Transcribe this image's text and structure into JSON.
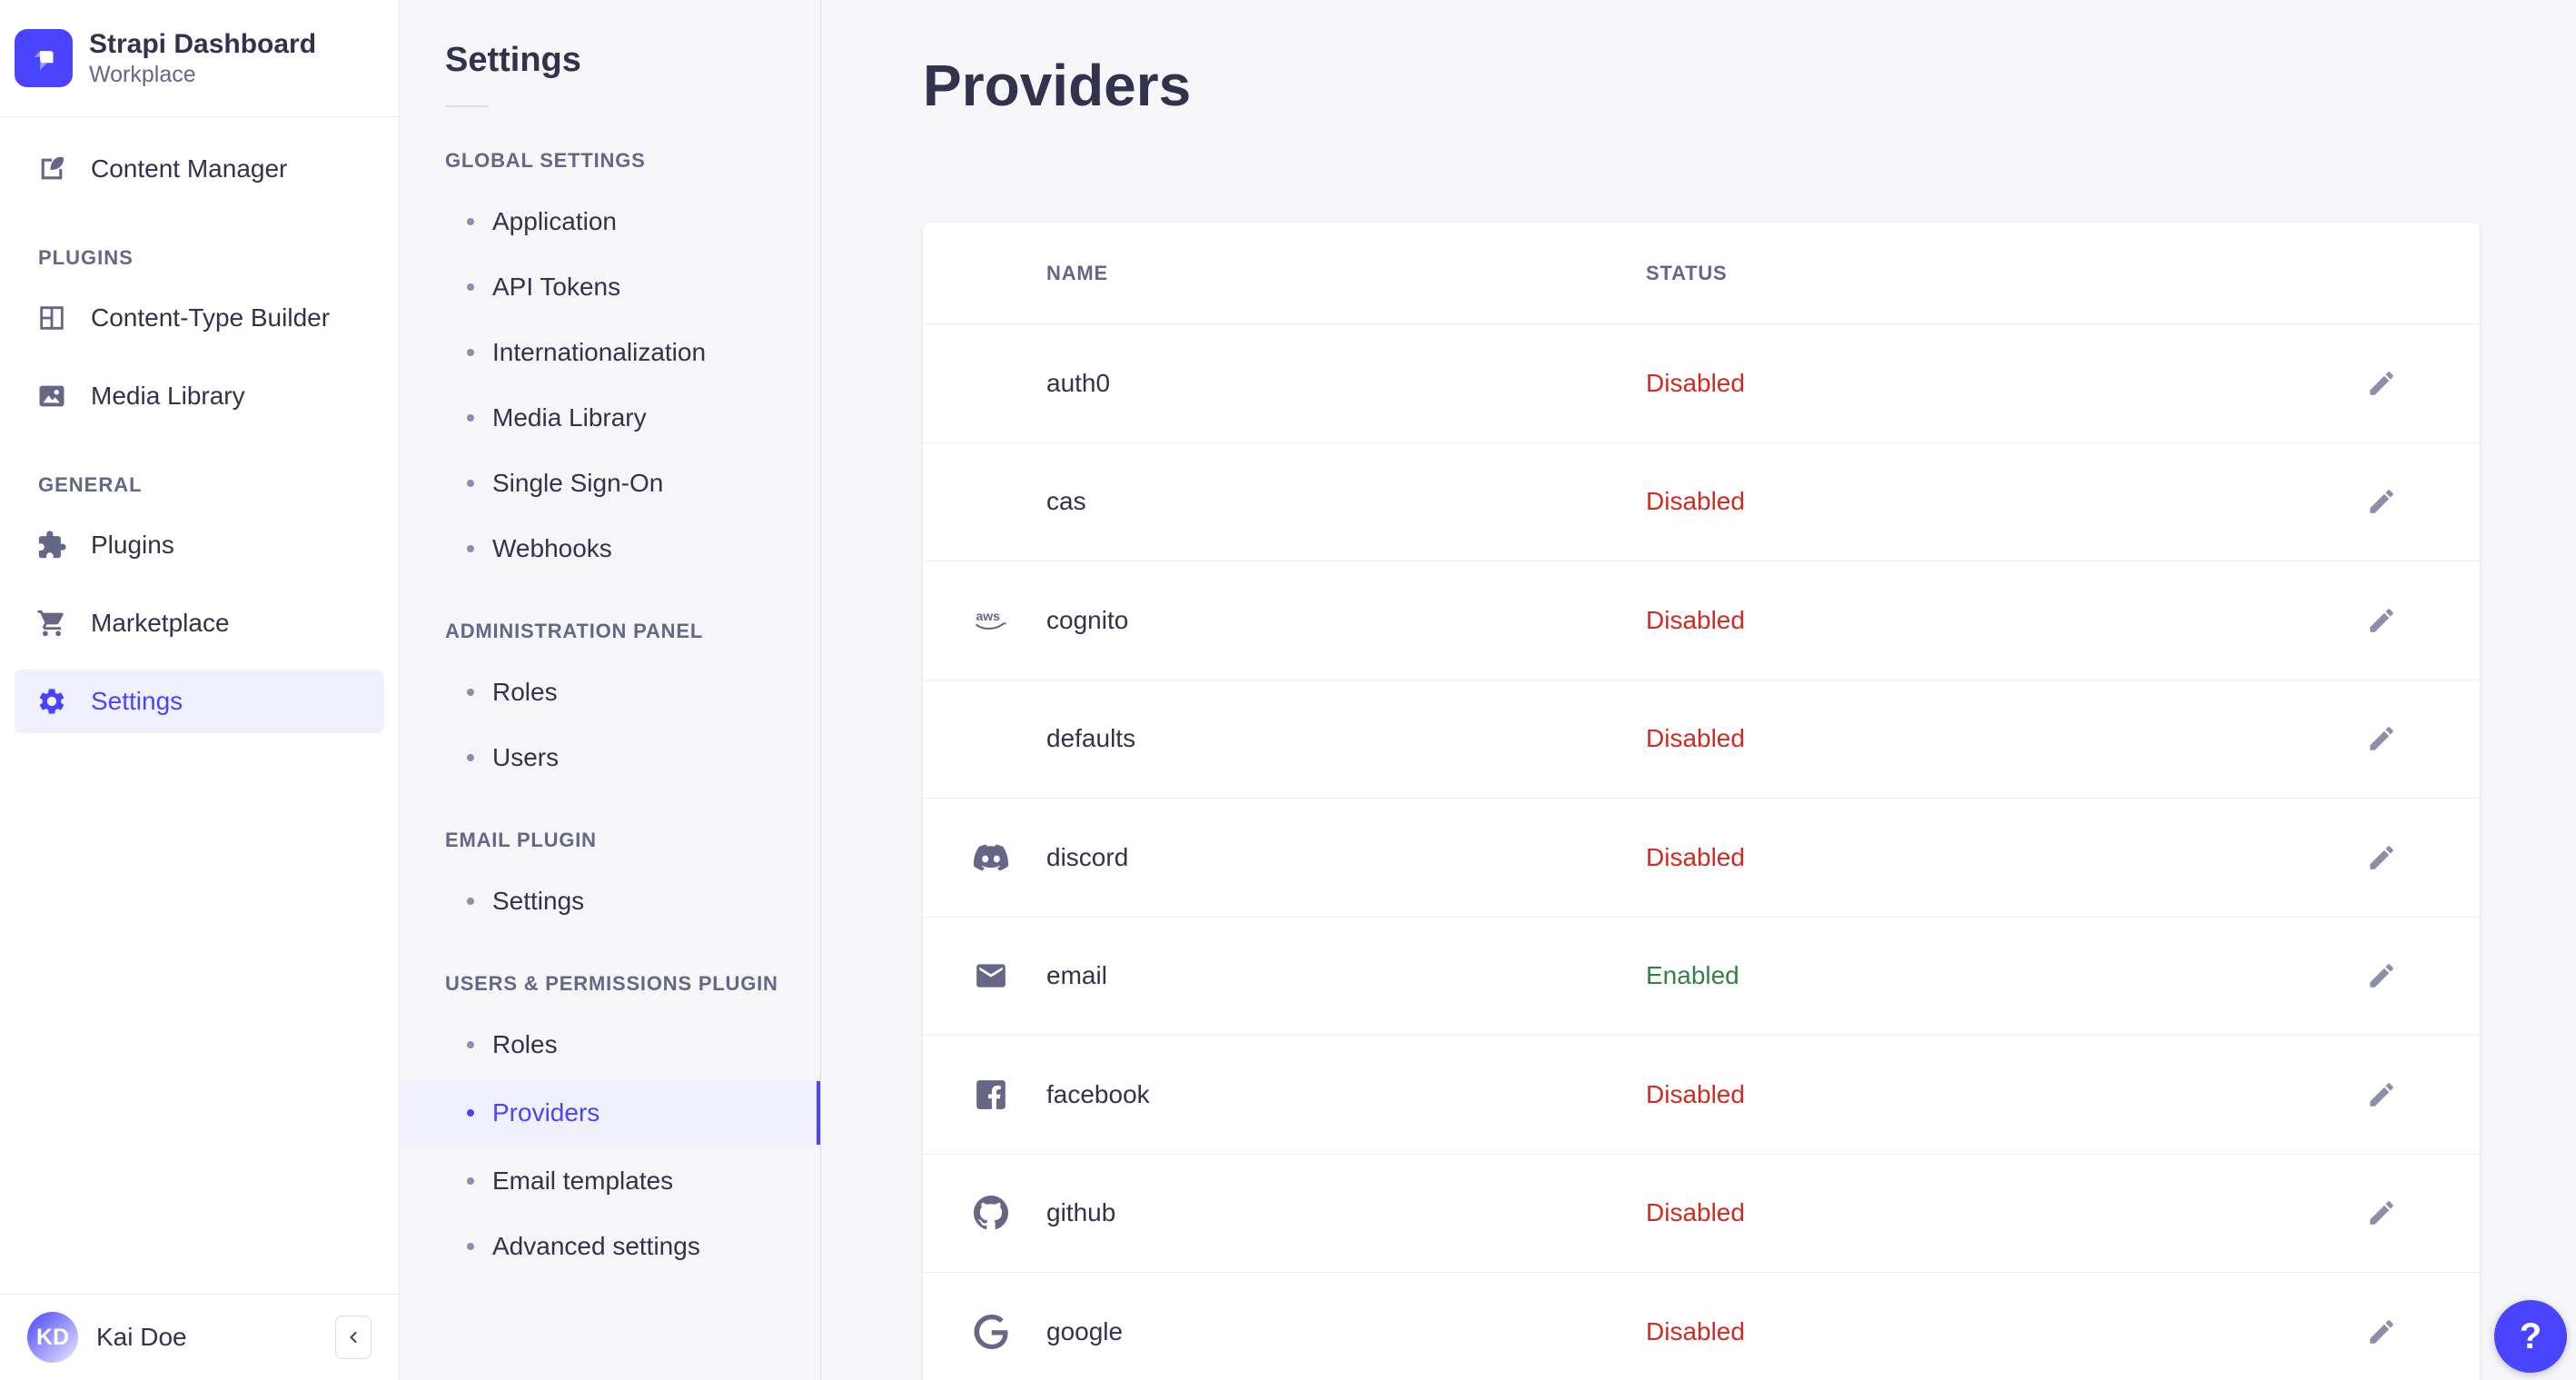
{
  "brand": {
    "name": "Strapi Dashboard",
    "workspace": "Workplace"
  },
  "nav": {
    "sections": [
      {
        "label": null,
        "items": [
          {
            "label": "Content Manager",
            "icon": "content-manager-icon",
            "active": false
          }
        ]
      },
      {
        "label": "PLUGINS",
        "items": [
          {
            "label": "Content-Type Builder",
            "icon": "content-type-builder-icon",
            "active": false
          },
          {
            "label": "Media Library",
            "icon": "media-library-icon",
            "active": false
          }
        ]
      },
      {
        "label": "GENERAL",
        "items": [
          {
            "label": "Plugins",
            "icon": "plugins-icon",
            "active": false
          },
          {
            "label": "Marketplace",
            "icon": "marketplace-icon",
            "active": false
          },
          {
            "label": "Settings",
            "icon": "settings-gear-icon",
            "active": true
          }
        ]
      }
    ]
  },
  "user": {
    "initials": "KD",
    "name": "Kai Doe"
  },
  "subnav": {
    "title": "Settings",
    "sections": [
      {
        "label": "GLOBAL SETTINGS",
        "items": [
          {
            "label": "Application",
            "active": false
          },
          {
            "label": "API Tokens",
            "active": false
          },
          {
            "label": "Internationalization",
            "active": false
          },
          {
            "label": "Media Library",
            "active": false
          },
          {
            "label": "Single Sign-On",
            "active": false
          },
          {
            "label": "Webhooks",
            "active": false
          }
        ]
      },
      {
        "label": "ADMINISTRATION PANEL",
        "items": [
          {
            "label": "Roles",
            "active": false
          },
          {
            "label": "Users",
            "active": false
          }
        ]
      },
      {
        "label": "EMAIL PLUGIN",
        "items": [
          {
            "label": "Settings",
            "active": false
          }
        ]
      },
      {
        "label": "USERS & PERMISSIONS PLUGIN",
        "items": [
          {
            "label": "Roles",
            "active": false
          },
          {
            "label": "Providers",
            "active": true
          },
          {
            "label": "Email templates",
            "active": false
          },
          {
            "label": "Advanced settings",
            "active": false
          }
        ]
      }
    ]
  },
  "main": {
    "title": "Providers",
    "table": {
      "columns": [
        "NAME",
        "STATUS"
      ],
      "rows": [
        {
          "name": "auth0",
          "icon": null,
          "status": "Disabled"
        },
        {
          "name": "cas",
          "icon": null,
          "status": "Disabled"
        },
        {
          "name": "cognito",
          "icon": "aws-icon",
          "status": "Disabled"
        },
        {
          "name": "defaults",
          "icon": null,
          "status": "Disabled"
        },
        {
          "name": "discord",
          "icon": "discord-icon",
          "status": "Disabled"
        },
        {
          "name": "email",
          "icon": "email-icon",
          "status": "Enabled"
        },
        {
          "name": "facebook",
          "icon": "facebook-icon",
          "status": "Disabled"
        },
        {
          "name": "github",
          "icon": "github-icon",
          "status": "Disabled"
        },
        {
          "name": "google",
          "icon": "google-icon",
          "status": "Disabled"
        }
      ]
    }
  },
  "help": {
    "label": "?"
  },
  "colors": {
    "accent": "#4945FF",
    "status_enabled": "#328048",
    "status_disabled": "#D02B20",
    "active_background": "#F0F0FF"
  }
}
